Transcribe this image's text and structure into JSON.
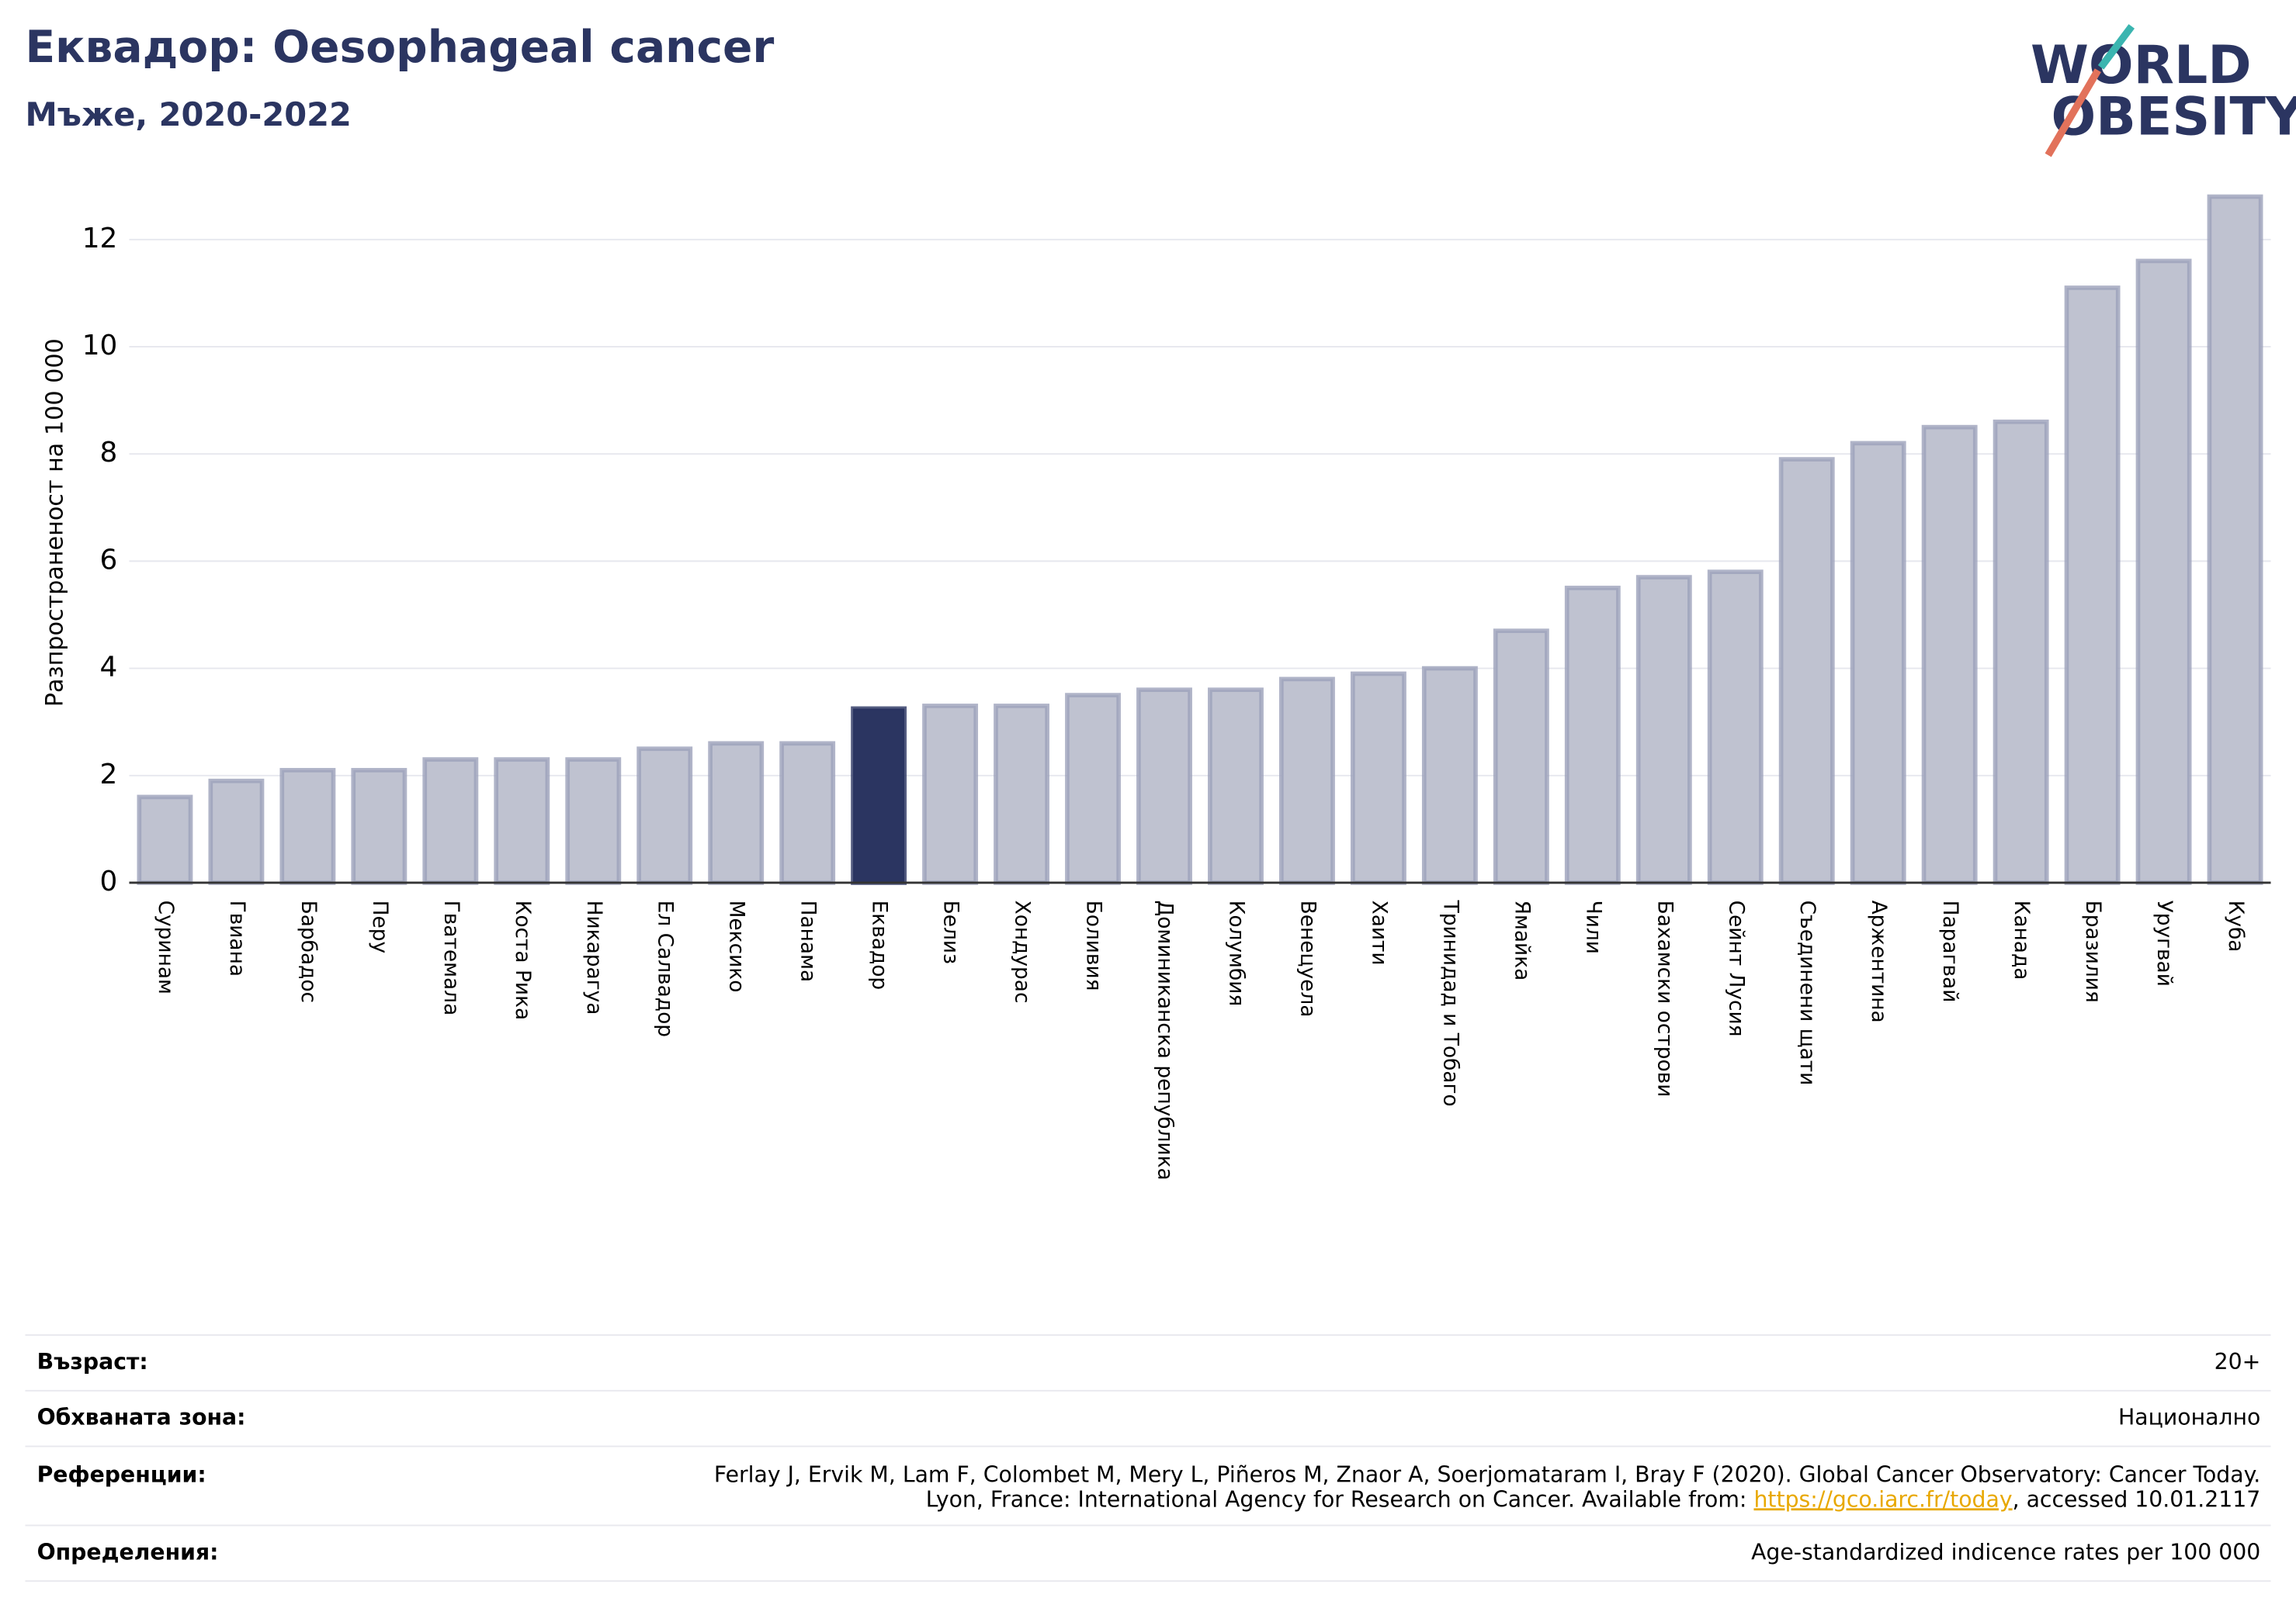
{
  "chart_data": {
    "type": "bar",
    "title": "Еквадор: Oesophageal cancer",
    "subtitle": "Мъже, 2020-2022",
    "y_label": "Разпространеност  на 100 000",
    "categories": [
      "Суринам",
      "Гвиана",
      "Барбадос",
      "Перу",
      "Гватемала",
      "Коста Рика",
      "Никарагуа",
      "Ел Салвадор",
      "Мексико",
      "Панама",
      "Еквадор",
      "Белиз",
      "Хондурас",
      "Боливия",
      "Доминиканска република",
      "Колумбия",
      "Венецуела",
      "Хаити",
      "Тринидад и Тобаго",
      "Ямайка",
      "Чили",
      "Бахамски острови",
      "Сейнт Лусия",
      "Съединени щати",
      "Аржентина",
      "Парагвай",
      "Канада",
      "Бразилия",
      "Уругвай",
      "Куба"
    ],
    "values": [
      1.6,
      1.9,
      2.1,
      2.1,
      2.3,
      2.3,
      2.3,
      2.5,
      2.6,
      2.6,
      3.25,
      3.3,
      3.3,
      3.5,
      3.6,
      3.6,
      3.8,
      3.9,
      4.0,
      4.7,
      5.5,
      5.7,
      5.8,
      7.9,
      8.2,
      8.5,
      8.6,
      11.1,
      11.6,
      12.8
    ],
    "color": "#bfc2d0",
    "highlight": "Еквадор",
    "highlight_color": "#2b3561",
    "ylim": [
      0,
      13
    ],
    "yticks": [
      0,
      2,
      4,
      6,
      8,
      10,
      12
    ],
    "grid": true
  },
  "logo": [
    "WORLD",
    "OBESITY"
  ],
  "info": [
    {
      "label": "Възраст:",
      "value": [
        "20+"
      ]
    },
    {
      "label": "Обхваната зона:",
      "value": [
        "Национално"
      ]
    },
    {
      "label": "Референции:",
      "value": [
        "Ferlay J, Ervik M, Lam F, Colombet M, Mery L, Piñeros M, Znaor A, Soerjomataram I, Bray F (2020). Global Cancer Observatory: Cancer Today.",
        "Lyon, France: International Agency for Research on Cancer. Available from: "
      ],
      "link": "https://gco.iarc.fr/today",
      "after_link": ", accessed 10.01.2117"
    },
    {
      "label": "Определения:",
      "value": [
        "Age-standardized indicence rates per 100 000"
      ]
    }
  ]
}
